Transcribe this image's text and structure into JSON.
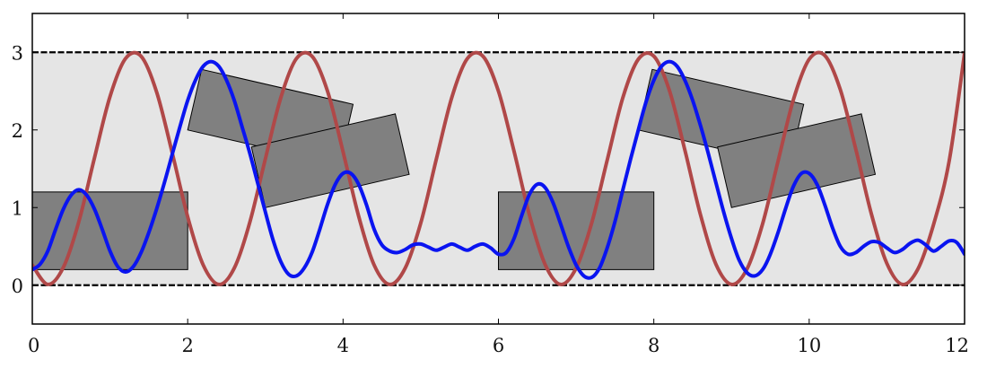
{
  "chart_data": {
    "type": "line",
    "title": "",
    "xlabel": "",
    "ylabel": "",
    "xlim": [
      0,
      12
    ],
    "ylim": [
      -0.5,
      3.5
    ],
    "grid": false,
    "legend": "none",
    "x_ticks": [
      {
        "value": 0,
        "label": "0"
      },
      {
        "value": 2,
        "label": "2"
      },
      {
        "value": 4,
        "label": "4"
      },
      {
        "value": 6,
        "label": "6"
      },
      {
        "value": 8,
        "label": "8"
      },
      {
        "value": 10,
        "label": "10"
      },
      {
        "value": 12,
        "label": "12"
      }
    ],
    "y_ticks": [
      {
        "value": 0,
        "label": "0"
      },
      {
        "value": 1,
        "label": "1"
      },
      {
        "value": 2,
        "label": "2"
      },
      {
        "value": 3,
        "label": "3"
      }
    ],
    "band": {
      "y0": 0,
      "y1": 3,
      "color": "#e5e5e5",
      "edge_color": "#000000",
      "edge_style": "dashed"
    },
    "rectangles": [
      {
        "x": 0,
        "y": 0.2,
        "width": 2,
        "height": 1.0,
        "angle_deg": 0,
        "color": "#808080"
      },
      {
        "x": 2.0,
        "y": 2.0,
        "width": 2.0,
        "height": 0.8,
        "angle_deg": -13,
        "color": "#808080"
      },
      {
        "x": 3.0,
        "y": 1.0,
        "width": 1.9,
        "height": 0.8,
        "angle_deg": 13,
        "color": "#808080"
      },
      {
        "x": 6,
        "y": 0.2,
        "width": 2,
        "height": 1.0,
        "angle_deg": 0,
        "color": "#808080"
      },
      {
        "x": 7.8,
        "y": 2.0,
        "width": 2.0,
        "height": 0.8,
        "angle_deg": -13,
        "color": "#808080"
      },
      {
        "x": 9.0,
        "y": 1.0,
        "width": 1.9,
        "height": 0.8,
        "angle_deg": 13,
        "color": "#808080"
      }
    ],
    "series": [
      {
        "color": "#b04848",
        "x": [
          0,
          0.2,
          0.4,
          0.6,
          0.8,
          1.0,
          1.2,
          1.4,
          1.6,
          1.8,
          2.0,
          2.2,
          2.4,
          2.6,
          2.8,
          3.0,
          3.2,
          3.4,
          3.6,
          3.8,
          4.0,
          4.2,
          4.4,
          4.6,
          4.8,
          5.0,
          5.2,
          5.4,
          5.6,
          5.8,
          6.0,
          6.2,
          6.4,
          6.6,
          6.8,
          7.0,
          7.2,
          7.4,
          7.6,
          7.8,
          8.0,
          8.2,
          8.4,
          8.6,
          8.8,
          9.0,
          9.2,
          9.4,
          9.6,
          9.8,
          10.0,
          10.2,
          10.4,
          10.6,
          10.8,
          11.0,
          11.2,
          11.4,
          11.6,
          11.8,
          12.0
        ],
        "y": [
          0.26,
          0.01,
          0.23,
          0.82,
          1.64,
          2.43,
          2.92,
          2.95,
          2.49,
          1.71,
          0.88,
          0.26,
          0.01,
          0.22,
          0.81,
          1.63,
          2.42,
          2.92,
          2.95,
          2.5,
          1.72,
          0.89,
          0.26,
          0.01,
          0.22,
          0.8,
          1.62,
          2.42,
          2.92,
          2.95,
          2.5,
          1.73,
          0.9,
          0.27,
          0.01,
          0.22,
          0.8,
          1.61,
          2.41,
          2.91,
          2.95,
          2.51,
          1.74,
          0.91,
          0.27,
          0.01,
          0.21,
          0.79,
          1.6,
          2.4,
          2.91,
          2.96,
          2.52,
          1.75,
          0.92,
          0.28,
          0.01,
          0.21,
          0.78,
          1.59,
          2.99
        ]
      },
      {
        "color": "#0a14f0",
        "x": [
          0,
          0.1,
          0.2,
          0.3,
          0.4,
          0.5,
          0.6,
          0.7,
          0.8,
          0.9,
          1.0,
          1.1,
          1.2,
          1.3,
          1.4,
          1.5,
          1.6,
          1.7,
          1.8,
          1.9,
          2.0,
          2.1,
          2.2,
          2.3,
          2.4,
          2.5,
          2.6,
          2.7,
          2.8,
          2.9,
          3.0,
          3.1,
          3.2,
          3.3,
          3.4,
          3.5,
          3.6,
          3.7,
          3.8,
          3.9,
          4.0,
          4.1,
          4.2,
          4.3,
          4.4,
          4.5,
          4.6,
          4.7,
          4.8,
          4.9,
          5.0,
          5.1,
          5.2,
          5.3,
          5.4,
          5.5,
          5.6,
          5.7,
          5.8,
          5.9,
          6.0,
          6.1,
          6.2,
          6.3,
          6.4,
          6.5,
          6.6,
          6.7,
          6.8,
          6.9,
          7.0,
          7.1,
          7.2,
          7.3,
          7.4,
          7.5,
          7.6,
          7.7,
          7.8,
          7.9,
          8.0,
          8.1,
          8.2,
          8.3,
          8.4,
          8.5,
          8.6,
          8.7,
          8.8,
          8.9,
          9.0,
          9.1,
          9.2,
          9.3,
          9.4,
          9.5,
          9.6,
          9.7,
          9.8,
          9.9,
          10.0,
          10.1,
          10.2,
          10.3,
          10.4,
          10.5,
          10.6,
          10.7,
          10.8,
          10.9,
          11.0,
          11.1,
          11.2,
          11.3,
          11.4,
          11.5,
          11.6,
          11.7,
          11.8,
          11.9,
          12.0
        ],
        "y": [
          0.2,
          0.27,
          0.44,
          0.72,
          0.98,
          1.16,
          1.23,
          1.16,
          0.98,
          0.72,
          0.44,
          0.24,
          0.17,
          0.24,
          0.42,
          0.68,
          0.98,
          1.32,
          1.68,
          2.04,
          2.38,
          2.64,
          2.82,
          2.88,
          2.82,
          2.64,
          2.38,
          2.04,
          1.7,
          1.32,
          0.94,
          0.58,
          0.3,
          0.14,
          0.12,
          0.22,
          0.42,
          0.72,
          1.04,
          1.3,
          1.44,
          1.44,
          1.3,
          1.04,
          0.72,
          0.52,
          0.44,
          0.42,
          0.46,
          0.52,
          0.53,
          0.49,
          0.45,
          0.49,
          0.53,
          0.49,
          0.45,
          0.5,
          0.53,
          0.48,
          0.4,
          0.42,
          0.6,
          0.9,
          1.17,
          1.3,
          1.26,
          1.07,
          0.79,
          0.5,
          0.26,
          0.12,
          0.1,
          0.22,
          0.48,
          0.82,
          1.22,
          1.62,
          2.0,
          2.36,
          2.64,
          2.82,
          2.88,
          2.82,
          2.64,
          2.38,
          2.06,
          1.7,
          1.32,
          0.94,
          0.6,
          0.32,
          0.16,
          0.12,
          0.2,
          0.4,
          0.68,
          1.0,
          1.28,
          1.44,
          1.44,
          1.3,
          1.04,
          0.74,
          0.5,
          0.4,
          0.42,
          0.5,
          0.56,
          0.55,
          0.48,
          0.42,
          0.46,
          0.54,
          0.58,
          0.52,
          0.44,
          0.5,
          0.57,
          0.55,
          0.4
        ]
      }
    ]
  }
}
